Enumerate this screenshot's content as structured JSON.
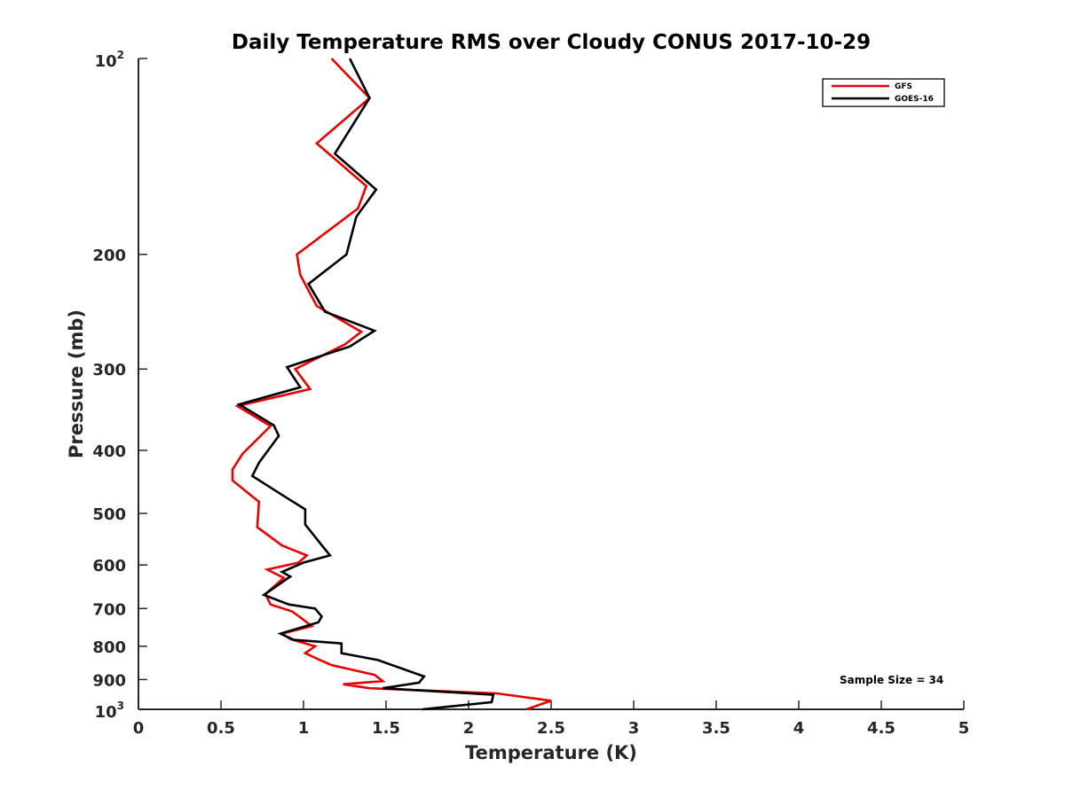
{
  "chart_data": {
    "type": "line",
    "title": "Daily Temperature RMS over Cloudy CONUS 2017-10-29",
    "xlabel": "Temperature (K)",
    "ylabel": "Pressure (mb)",
    "xlim": [
      0,
      5
    ],
    "ylim": [
      100,
      1000
    ],
    "y_scale": "log",
    "y_reversed": true,
    "grid": false,
    "legend_position": "top-right",
    "x_ticks": [
      "0",
      "0.5",
      "1",
      "1.5",
      "2",
      "2.5",
      "3",
      "3.5",
      "4",
      "4.5",
      "5"
    ],
    "y_ticks": [
      {
        "value": 100,
        "base": "10",
        "exp": "2"
      },
      {
        "value": 200,
        "label": "200"
      },
      {
        "value": 300,
        "label": "300"
      },
      {
        "value": 400,
        "label": "400"
      },
      {
        "value": 500,
        "label": "500"
      },
      {
        "value": 600,
        "label": "600"
      },
      {
        "value": 700,
        "label": "700"
      },
      {
        "value": 800,
        "label": "800"
      },
      {
        "value": 900,
        "label": "900"
      },
      {
        "value": 1000,
        "base": "10",
        "exp": "3"
      }
    ],
    "annotation": "Sample Size = 34",
    "series": [
      {
        "name": "GFS",
        "color": "#e60000",
        "points": [
          [
            1.17,
            100
          ],
          [
            1.4,
            115
          ],
          [
            1.08,
            135
          ],
          [
            1.38,
            157
          ],
          [
            1.33,
            170
          ],
          [
            0.96,
            200
          ],
          [
            0.98,
            215
          ],
          [
            1.08,
            240
          ],
          [
            1.35,
            263
          ],
          [
            1.25,
            275
          ],
          [
            0.95,
            300
          ],
          [
            1.04,
            322
          ],
          [
            0.6,
            342
          ],
          [
            0.8,
            367
          ],
          [
            0.63,
            405
          ],
          [
            0.57,
            428
          ],
          [
            0.57,
            445
          ],
          [
            0.73,
            480
          ],
          [
            0.72,
            525
          ],
          [
            0.87,
            560
          ],
          [
            1.02,
            580
          ],
          [
            0.97,
            595
          ],
          [
            0.78,
            610
          ],
          [
            0.88,
            628
          ],
          [
            0.77,
            665
          ],
          [
            0.8,
            690
          ],
          [
            0.93,
            707
          ],
          [
            0.98,
            722
          ],
          [
            1.05,
            745
          ],
          [
            0.87,
            765
          ],
          [
            0.92,
            780
          ],
          [
            1.07,
            800
          ],
          [
            1.01,
            820
          ],
          [
            1.1,
            840
          ],
          [
            1.17,
            855
          ],
          [
            1.43,
            885
          ],
          [
            1.48,
            905
          ],
          [
            1.24,
            915
          ],
          [
            1.4,
            928
          ],
          [
            2.17,
            945
          ],
          [
            2.5,
            970
          ],
          [
            2.35,
            1000
          ]
        ]
      },
      {
        "name": "GOES-16",
        "color": "#000000",
        "points": [
          [
            1.28,
            100
          ],
          [
            1.4,
            115
          ],
          [
            1.19,
            140
          ],
          [
            1.44,
            159
          ],
          [
            1.32,
            175
          ],
          [
            1.26,
            200
          ],
          [
            1.03,
            222
          ],
          [
            1.13,
            245
          ],
          [
            1.43,
            262
          ],
          [
            1.28,
            277
          ],
          [
            0.9,
            298
          ],
          [
            0.98,
            320
          ],
          [
            0.61,
            340
          ],
          [
            0.82,
            366
          ],
          [
            0.85,
            380
          ],
          [
            0.73,
            418
          ],
          [
            0.69,
            438
          ],
          [
            0.88,
            470
          ],
          [
            1.01,
            493
          ],
          [
            1.01,
            520
          ],
          [
            1.16,
            580
          ],
          [
            1.0,
            595
          ],
          [
            0.87,
            615
          ],
          [
            0.92,
            625
          ],
          [
            0.76,
            667
          ],
          [
            0.91,
            690
          ],
          [
            1.07,
            700
          ],
          [
            1.11,
            720
          ],
          [
            1.09,
            735
          ],
          [
            0.86,
            765
          ],
          [
            0.94,
            782
          ],
          [
            1.23,
            792
          ],
          [
            1.23,
            820
          ],
          [
            1.45,
            840
          ],
          [
            1.73,
            890
          ],
          [
            1.7,
            910
          ],
          [
            1.48,
            928
          ],
          [
            2.15,
            950
          ],
          [
            2.14,
            975
          ],
          [
            1.72,
            1000
          ]
        ]
      }
    ]
  }
}
